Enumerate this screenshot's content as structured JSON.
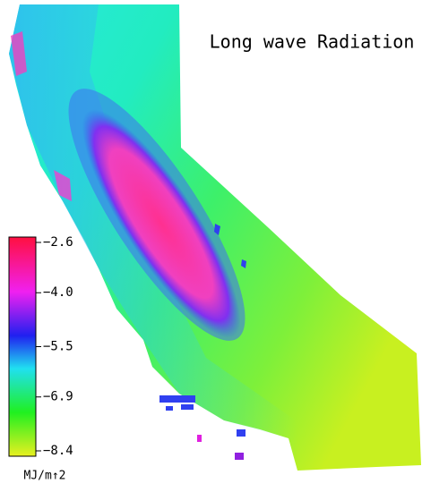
{
  "title": "Long wave Radiation",
  "colorbar": {
    "unit_label": "MJ/m↑2",
    "range": [
      -8.4,
      -2.6
    ],
    "ticks": [
      {
        "value": -2.6,
        "label": "−2.6"
      },
      {
        "value": -4.0,
        "label": "−4.0"
      },
      {
        "value": -5.5,
        "label": "−5.5"
      },
      {
        "value": -6.9,
        "label": "−6.9"
      },
      {
        "value": -8.4,
        "label": "−8.4"
      }
    ]
  }
}
